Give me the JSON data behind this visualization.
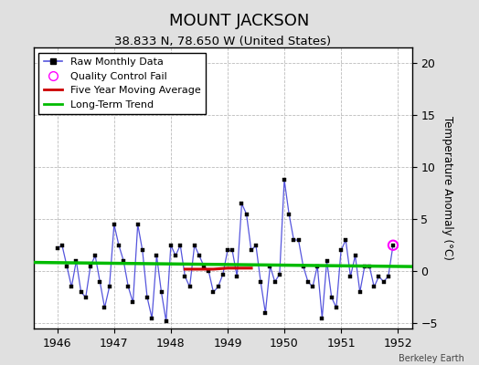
{
  "title": "MOUNT JACKSON",
  "subtitle": "38.833 N, 78.650 W (United States)",
  "watermark": "Berkeley Earth",
  "ylabel": "Temperature Anomaly (°C)",
  "xlim": [
    1945.58,
    1952.25
  ],
  "ylim": [
    -5.5,
    21.5
  ],
  "yticks": [
    -5,
    0,
    5,
    10,
    15,
    20
  ],
  "xticks": [
    1946,
    1947,
    1948,
    1949,
    1950,
    1951,
    1952
  ],
  "bg_color": "#e0e0e0",
  "plot_bg_color": "#ffffff",
  "raw_color": "#5555dd",
  "moving_avg_color": "#cc0000",
  "trend_color": "#00bb00",
  "qc_fail_color": "#ff00ff",
  "raw_data_x": [
    1946.0,
    1946.083,
    1946.167,
    1946.25,
    1946.333,
    1946.417,
    1946.5,
    1946.583,
    1946.667,
    1946.75,
    1946.833,
    1946.917,
    1947.0,
    1947.083,
    1947.167,
    1947.25,
    1947.333,
    1947.417,
    1947.5,
    1947.583,
    1947.667,
    1947.75,
    1947.833,
    1947.917,
    1948.0,
    1948.083,
    1948.167,
    1948.25,
    1948.333,
    1948.417,
    1948.5,
    1948.583,
    1948.667,
    1948.75,
    1948.833,
    1948.917,
    1949.0,
    1949.083,
    1949.167,
    1949.25,
    1949.333,
    1949.417,
    1949.5,
    1949.583,
    1949.667,
    1949.75,
    1949.833,
    1949.917,
    1950.0,
    1950.083,
    1950.167,
    1950.25,
    1950.333,
    1950.417,
    1950.5,
    1950.583,
    1950.667,
    1950.75,
    1950.833,
    1950.917,
    1951.0,
    1951.083,
    1951.167,
    1951.25,
    1951.333,
    1951.417,
    1951.5,
    1951.583,
    1951.667,
    1951.75,
    1951.833,
    1951.917
  ],
  "raw_data_y": [
    2.2,
    2.5,
    0.5,
    -1.5,
    1.0,
    -2.0,
    -2.5,
    0.5,
    1.5,
    -1.0,
    -3.5,
    -1.5,
    4.5,
    2.5,
    1.0,
    -1.5,
    -3.0,
    4.5,
    2.0,
    -2.5,
    -4.5,
    1.5,
    -2.0,
    -4.8,
    2.5,
    1.5,
    2.5,
    -0.5,
    -1.5,
    2.5,
    1.5,
    0.5,
    0.0,
    -2.0,
    -1.5,
    -0.3,
    2.0,
    2.0,
    -0.5,
    6.5,
    5.5,
    2.0,
    2.5,
    -1.0,
    -4.0,
    0.5,
    -1.0,
    -0.3,
    8.8,
    5.5,
    3.0,
    3.0,
    0.5,
    -1.0,
    -1.5,
    0.5,
    -4.5,
    1.0,
    -2.5,
    -3.5,
    2.0,
    3.0,
    -0.5,
    1.5,
    -2.0,
    0.5,
    0.5,
    -1.5,
    -0.5,
    -1.0,
    -0.5,
    2.5
  ],
  "qc_fail_x": [
    1951.917
  ],
  "qc_fail_y": [
    2.5
  ],
  "moving_avg_x": [
    1948.25,
    1948.5,
    1948.75,
    1949.0,
    1949.25,
    1949.42
  ],
  "moving_avg_y": [
    0.2,
    0.2,
    0.2,
    0.3,
    0.3,
    0.3
  ],
  "trend_x": [
    1945.58,
    1952.25
  ],
  "trend_y": [
    0.85,
    0.45
  ],
  "grid_color": "#aaaaaa",
  "grid_linestyle": "--",
  "title_fontsize": 13,
  "subtitle_fontsize": 9.5,
  "legend_fontsize": 8,
  "tick_fontsize": 9,
  "ylabel_fontsize": 8.5
}
